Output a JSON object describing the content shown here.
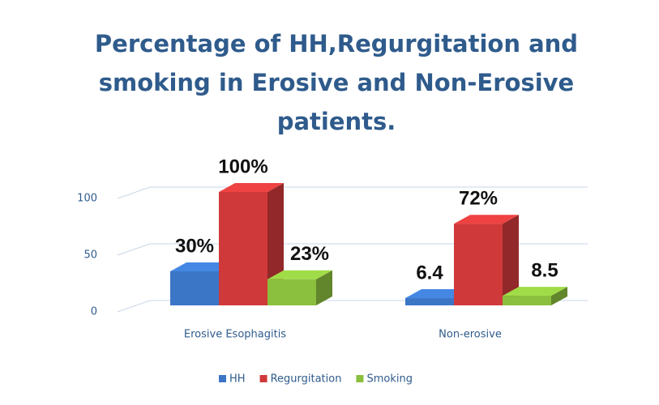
{
  "chart_data": {
    "type": "bar3d",
    "title": "Percentage of HH,Regurgitation and smoking in Erosive and Non-Erosive patients.",
    "categories": [
      "Erosive Esophagitis",
      "Non-erosive"
    ],
    "series": [
      {
        "name": "HH",
        "color": "#3b76c6",
        "values": [
          30,
          6.4
        ],
        "value_labels": [
          "30%",
          "6.4"
        ]
      },
      {
        "name": "Regurgitation",
        "color": "#d0393a",
        "values": [
          100,
          72
        ],
        "value_labels": [
          "100%",
          "72%"
        ]
      },
      {
        "name": "Smoking",
        "color": "#8bbf3e",
        "values": [
          23,
          8.5
        ],
        "value_labels": [
          "23%",
          "8.5"
        ]
      }
    ],
    "ylim": [
      0,
      120
    ],
    "yticks": [
      0,
      50,
      100
    ],
    "grid": true,
    "legend": "bottom"
  }
}
